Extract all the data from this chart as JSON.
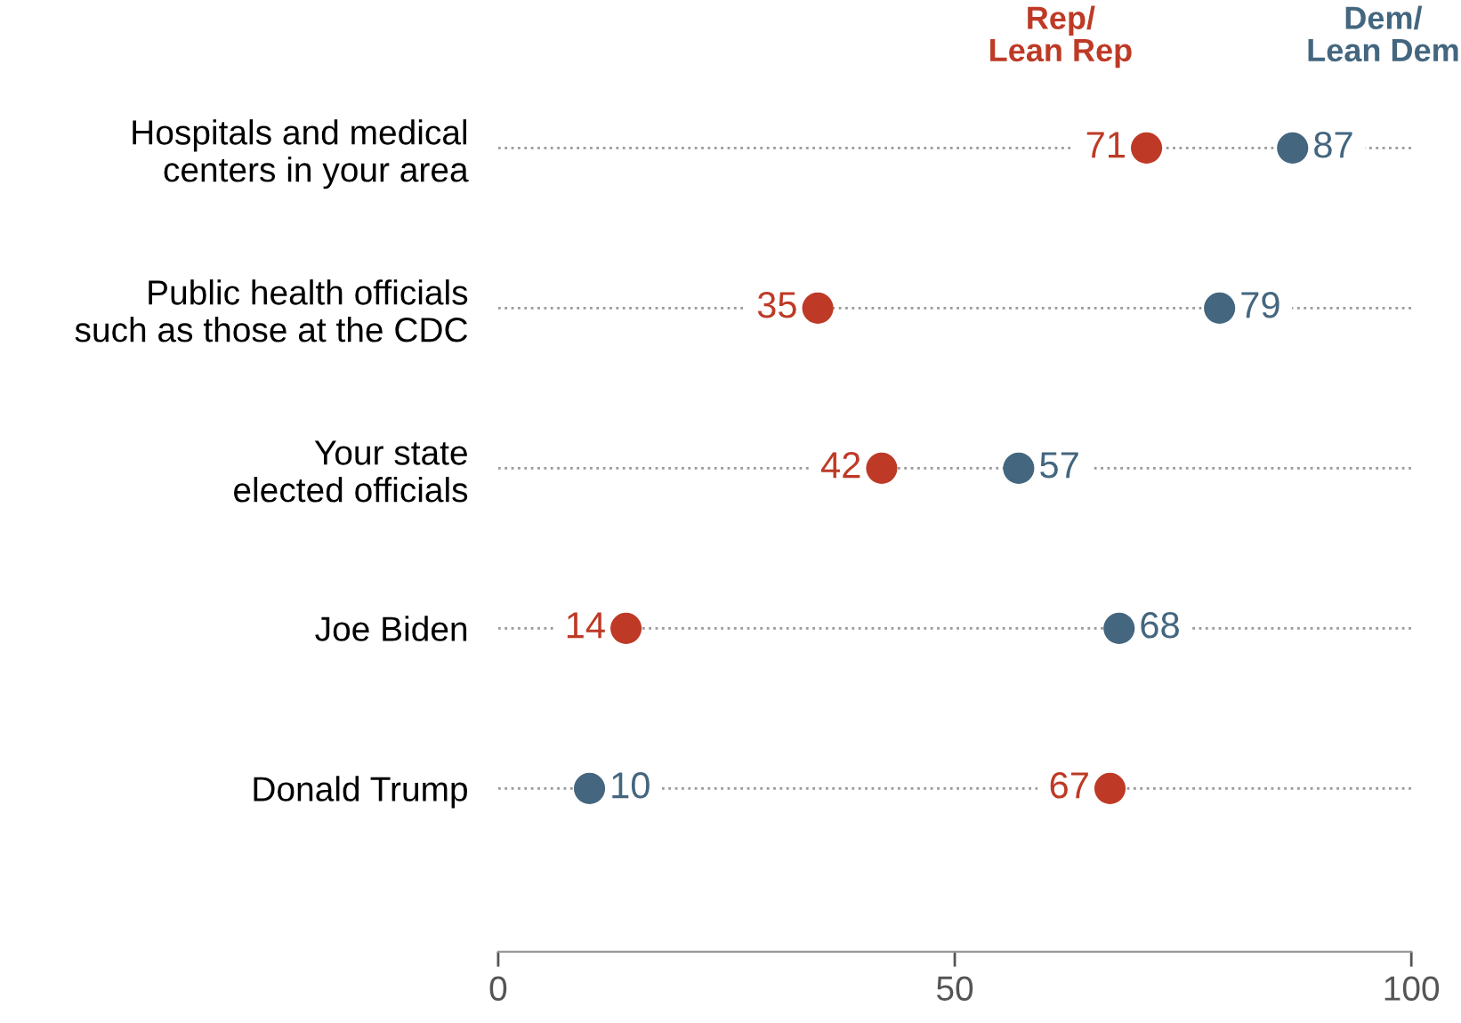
{
  "chart_data": {
    "type": "scatter",
    "orientation": "horizontal",
    "categories": [
      "Hospitals and medical\ncenters in your area",
      "Public health officials\nsuch as those at the CDC",
      "Your state\nelected officials",
      "Joe Biden",
      "Donald Trump"
    ],
    "series": [
      {
        "name": "Rep/\nLean Rep",
        "color": "#be3a26",
        "values": [
          71,
          35,
          42,
          14,
          67
        ]
      },
      {
        "name": "Dem/\nLean Dem",
        "color": "#44667f",
        "values": [
          87,
          79,
          57,
          68,
          10
        ]
      }
    ],
    "xlim": [
      0,
      100
    ],
    "xticks": [
      0,
      50,
      100
    ],
    "data_labels": true,
    "grid": "y",
    "line_style": "dotted",
    "marker": "circle",
    "legend": "top right"
  }
}
